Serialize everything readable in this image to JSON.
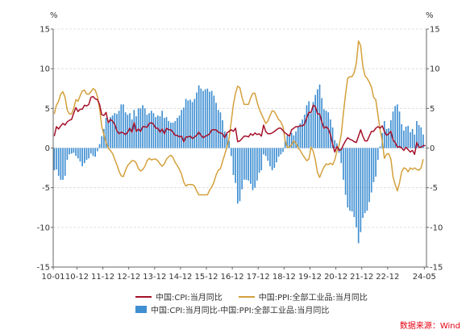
{
  "chart_data": {
    "type": "line+bar",
    "unit_left": "%",
    "unit_right": "%",
    "y_left_ticks": [
      15,
      10,
      5,
      0,
      -5,
      -10,
      -15
    ],
    "y_right_ticks": [
      15,
      10,
      5,
      0,
      -5,
      -10,
      -15
    ],
    "ylim": [
      -15,
      15
    ],
    "x_ticks": [
      "10-01",
      "10-12",
      "11-12",
      "12-12",
      "13-12",
      "14-12",
      "15-12",
      "16-12",
      "17-12",
      "18-12",
      "19-12",
      "20-12",
      "21-12",
      "22-12",
      "24-05"
    ],
    "x_tick_months": [
      0,
      11,
      23,
      35,
      47,
      59,
      71,
      83,
      95,
      107,
      119,
      131,
      143,
      155,
      172
    ],
    "month_start": "2010-01",
    "month_count": 173,
    "series": [
      {
        "name": "中国:CPI:当月同比",
        "type": "line",
        "color": "#a5102a",
        "key": "cpi"
      },
      {
        "name": "中国:PPI:全部工业品:当月同比",
        "type": "line",
        "color": "#d4a03c",
        "key": "ppi"
      },
      {
        "name": "中国:CPI:当月同比-中国:PPI:全部工业品:当月同比",
        "type": "bar",
        "color": "#3f8fd2",
        "key": "diff"
      }
    ],
    "cpi": [
      1.5,
      2.7,
      2.4,
      2.8,
      3.1,
      2.9,
      3.3,
      3.5,
      3.6,
      4.4,
      5.1,
      4.6,
      4.9,
      4.9,
      5.4,
      5.3,
      5.5,
      6.4,
      6.5,
      6.2,
      6.1,
      5.5,
      4.2,
      4.1,
      4.5,
      3.2,
      3.6,
      3.4,
      3.0,
      2.2,
      1.8,
      2.0,
      1.9,
      1.7,
      2.0,
      2.5,
      2.0,
      3.2,
      2.1,
      2.4,
      2.1,
      2.7,
      2.7,
      2.6,
      3.1,
      3.2,
      3.0,
      2.5,
      2.5,
      2.0,
      2.4,
      1.8,
      2.5,
      2.3,
      2.3,
      2.0,
      1.6,
      1.6,
      1.4,
      1.5,
      0.8,
      1.4,
      1.4,
      1.5,
      1.2,
      1.4,
      1.6,
      2.0,
      1.6,
      1.3,
      1.5,
      1.6,
      1.8,
      2.3,
      2.3,
      2.3,
      2.0,
      1.9,
      1.8,
      1.3,
      1.9,
      2.1,
      2.3,
      2.1,
      2.5,
      0.8,
      0.9,
      1.2,
      1.5,
      1.5,
      1.4,
      1.8,
      1.6,
      1.9,
      1.7,
      1.8,
      1.5,
      2.9,
      2.1,
      1.8,
      1.8,
      1.9,
      2.1,
      2.3,
      2.5,
      2.5,
      2.2,
      1.9,
      1.7,
      1.5,
      2.3,
      2.5,
      2.7,
      2.7,
      2.8,
      2.8,
      3.0,
      3.8,
      4.5,
      4.5,
      5.4,
      5.2,
      4.3,
      4.3,
      3.3,
      2.5,
      2.7,
      2.4,
      1.7,
      0.5,
      -0.5,
      0.2,
      -0.3,
      -0.2,
      0.4,
      0.9,
      1.3,
      1.1,
      1.0,
      0.8,
      0.7,
      1.5,
      2.3,
      1.5,
      0.9,
      0.9,
      1.5,
      2.1,
      2.1,
      2.5,
      2.7,
      2.5,
      2.8,
      2.1,
      1.6,
      1.8,
      2.1,
      1.0,
      0.7,
      0.1,
      0.2,
      0.0,
      -0.3,
      0.1,
      -0.2,
      -0.5,
      -0.3,
      -0.8,
      0.7,
      0.1,
      0.1,
      0.3,
      0.3
    ],
    "ppi": [
      4.3,
      5.4,
      5.9,
      6.8,
      7.1,
      6.4,
      4.8,
      4.3,
      4.3,
      5.0,
      6.1,
      5.9,
      6.6,
      7.2,
      7.3,
      6.8,
      6.8,
      7.1,
      7.5,
      7.3,
      6.5,
      5.0,
      2.7,
      1.7,
      0.7,
      0.0,
      -0.3,
      -0.7,
      -1.4,
      -2.1,
      -2.9,
      -3.5,
      -3.6,
      -2.8,
      -2.2,
      -1.9,
      -1.6,
      -1.6,
      -1.9,
      -2.6,
      -2.9,
      -2.7,
      -2.3,
      -1.6,
      -1.3,
      -1.5,
      -1.4,
      -1.4,
      -1.6,
      -2.0,
      -2.3,
      -2.0,
      -1.4,
      -1.1,
      -0.9,
      -1.2,
      -1.8,
      -2.2,
      -2.7,
      -3.3,
      -4.3,
      -4.8,
      -4.6,
      -4.6,
      -4.6,
      -4.8,
      -5.4,
      -5.9,
      -5.9,
      -5.9,
      -5.9,
      -5.9,
      -5.3,
      -4.9,
      -4.3,
      -3.4,
      -2.8,
      -2.6,
      -1.7,
      -0.8,
      0.1,
      1.2,
      3.3,
      5.5,
      6.9,
      7.8,
      7.6,
      6.4,
      5.5,
      5.5,
      5.5,
      6.3,
      6.9,
      6.9,
      5.8,
      4.9,
      4.3,
      3.7,
      3.1,
      3.4,
      4.1,
      4.7,
      4.6,
      4.1,
      3.6,
      3.3,
      2.7,
      0.9,
      0.1,
      0.1,
      0.4,
      0.9,
      0.6,
      0.0,
      -0.3,
      -0.8,
      -1.2,
      -1.6,
      -1.4,
      0.1,
      -0.4,
      -1.5,
      -3.1,
      -3.7,
      -3.0,
      -2.4,
      -2.0,
      -2.1,
      -1.9,
      -2.1,
      -1.5,
      -0.4,
      0.3,
      1.7,
      4.4,
      6.8,
      8.8,
      9.0,
      9.0,
      9.5,
      10.7,
      13.5,
      12.9,
      10.3,
      9.1,
      8.8,
      8.3,
      7.7,
      6.4,
      6.1,
      4.2,
      2.3,
      0.9,
      -1.3,
      -0.8,
      -0.7,
      -1.4,
      -3.6,
      -4.6,
      -5.4,
      -4.4,
      -3.0,
      -2.5,
      -2.6,
      -3.0,
      -2.5,
      -2.7,
      -2.5,
      -2.7,
      -2.8,
      -2.5,
      -1.4
    ],
    "diff_note": "bars computed as cpi - ppi"
  },
  "source": "数据来源：Wind"
}
